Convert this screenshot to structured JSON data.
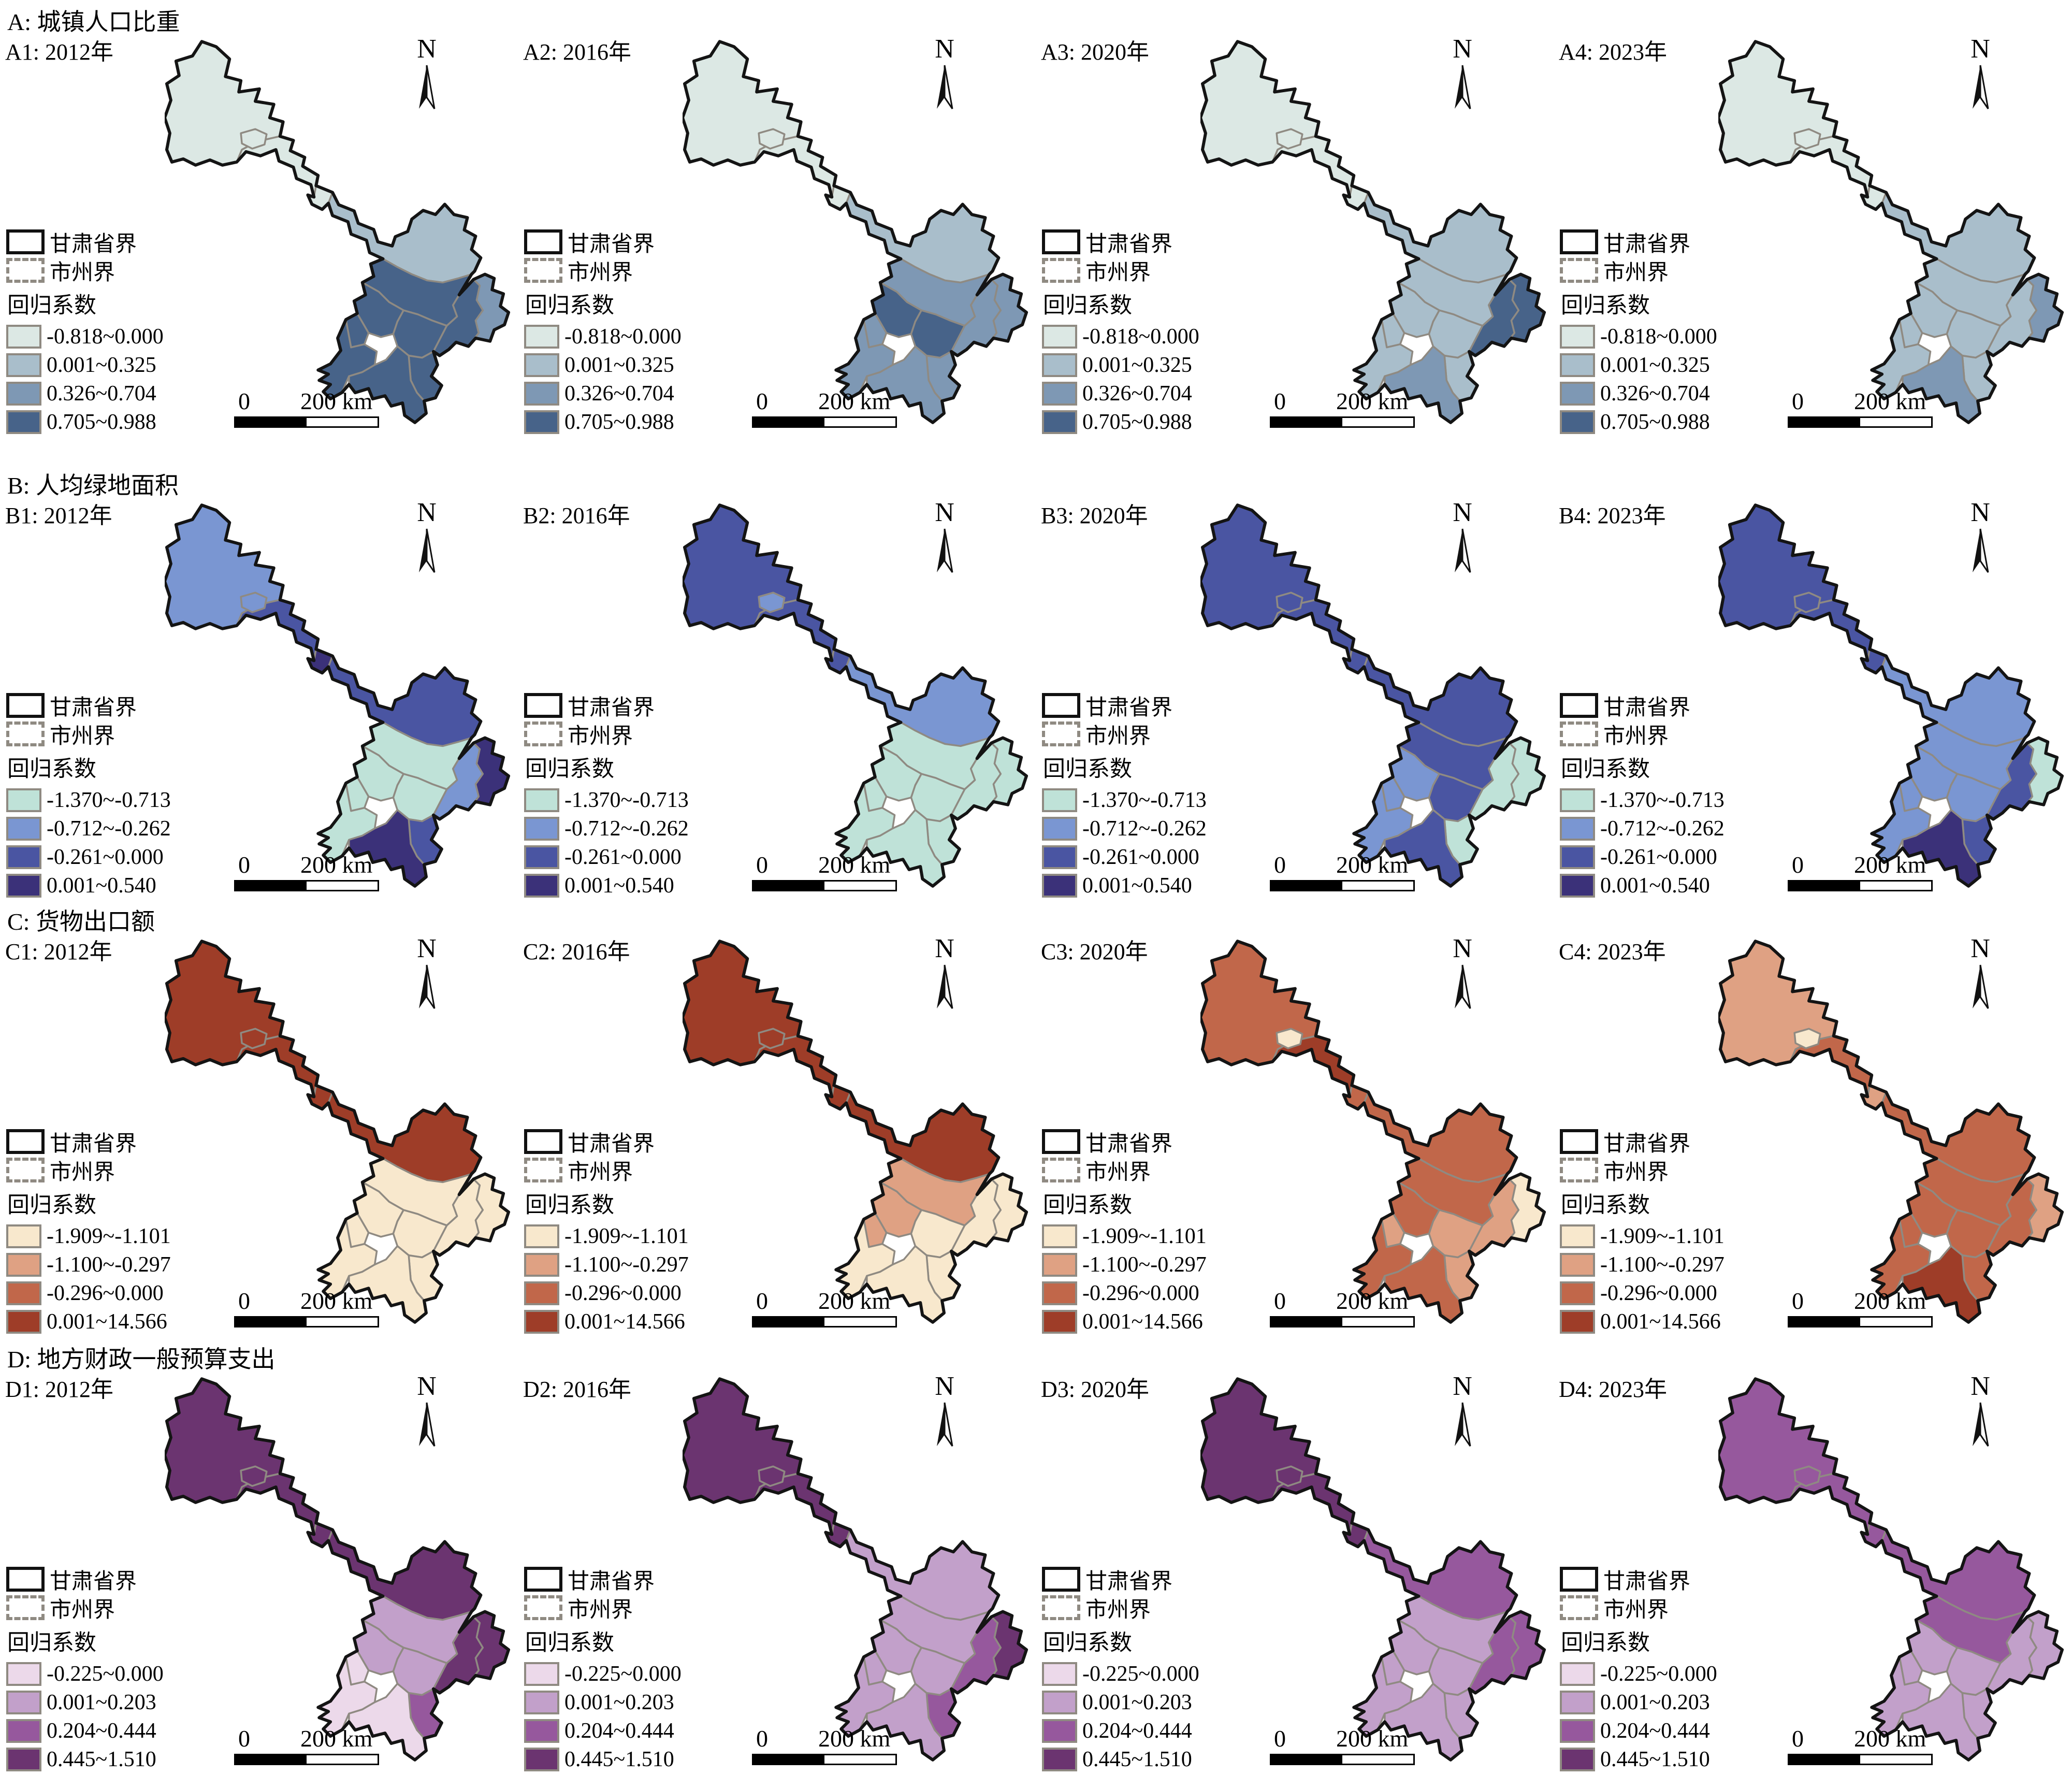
{
  "figure": {
    "north_label": "N",
    "legend": {
      "province_border_label": "甘肃省界",
      "city_border_label": "市州界",
      "coefficient_title": "回归系数"
    },
    "scalebar": {
      "zero": "0",
      "distance": "200 km"
    },
    "boundary_colors": {
      "province": "#141414",
      "prefecture": "#8f8a82"
    }
  },
  "chart_data": {
    "type": "choropleth-map-grid",
    "region": "Gansu Province, China",
    "years": [
      "2012年",
      "2016年",
      "2020年",
      "2023年"
    ],
    "rows": [
      {
        "id": "A",
        "title": "A: 城镇人口比重",
        "classes": [
          "-0.818~0.000",
          "0.001~0.325",
          "0.326~0.704",
          "0.705~0.988"
        ],
        "palette": [
          "#dce8e4",
          "#a9becb",
          "#7e98b4",
          "#476389"
        ],
        "panels": [
          {
            "title": "A1: 2012年",
            "region_classes": {
              "jiuquan": 1,
              "jiayuguan": 1,
              "zhangye": 1,
              "jinchang": 1,
              "wuwei": 2,
              "baiyin": 4,
              "lanzhou": 4,
              "linxia": 4,
              "dingxi": 4,
              "gannan": 4,
              "tianshui": 4,
              "longnan": 4,
              "pingliang": 4,
              "qingyang": 3
            }
          },
          {
            "title": "A2: 2016年",
            "region_classes": {
              "jiuquan": 1,
              "jiayuguan": 1,
              "zhangye": 1,
              "jinchang": 1,
              "wuwei": 2,
              "baiyin": 3,
              "lanzhou": 4,
              "linxia": 3,
              "dingxi": 4,
              "gannan": 3,
              "tianshui": 3,
              "longnan": 3,
              "pingliang": 3,
              "qingyang": 3
            }
          },
          {
            "title": "A3: 2020年",
            "region_classes": {
              "jiuquan": 1,
              "jiayuguan": 1,
              "zhangye": 1,
              "jinchang": 1,
              "wuwei": 2,
              "baiyin": 2,
              "lanzhou": 2,
              "linxia": 2,
              "dingxi": 2,
              "gannan": 2,
              "tianshui": 2,
              "longnan": 3,
              "pingliang": 4,
              "qingyang": 4
            }
          },
          {
            "title": "A4: 2023年",
            "region_classes": {
              "jiuquan": 1,
              "jiayuguan": 1,
              "zhangye": 1,
              "jinchang": 1,
              "wuwei": 2,
              "baiyin": 2,
              "lanzhou": 2,
              "linxia": 2,
              "dingxi": 2,
              "gannan": 2,
              "tianshui": 2,
              "longnan": 3,
              "pingliang": 2,
              "qingyang": 3
            }
          }
        ]
      },
      {
        "id": "B",
        "title": "B: 人均绿地面积",
        "classes": [
          "-1.370~-0.713",
          "-0.712~-0.262",
          "-0.261~0.000",
          "0.001~0.540"
        ],
        "palette": [
          "#bfe2d8",
          "#7a96d2",
          "#4a55a2",
          "#3b3179"
        ],
        "panels": [
          {
            "title": "B1: 2012年",
            "region_classes": {
              "jiuquan": 2,
              "jiayuguan": 2,
              "zhangye": 3,
              "jinchang": 4,
              "wuwei": 3,
              "baiyin": 1,
              "lanzhou": 1,
              "linxia": 1,
              "dingxi": 1,
              "gannan": 1,
              "tianshui": 3,
              "longnan": 4,
              "pingliang": 2,
              "qingyang": 4
            }
          },
          {
            "title": "B2: 2016年",
            "region_classes": {
              "jiuquan": 3,
              "jiayuguan": 2,
              "zhangye": 3,
              "jinchang": 3,
              "wuwei": 2,
              "baiyin": 1,
              "lanzhou": 1,
              "linxia": 1,
              "dingxi": 1,
              "gannan": 1,
              "tianshui": 1,
              "longnan": 1,
              "pingliang": 1,
              "qingyang": 1
            }
          },
          {
            "title": "B3: 2020年",
            "region_classes": {
              "jiuquan": 3,
              "jiayuguan": 3,
              "zhangye": 3,
              "jinchang": 3,
              "wuwei": 3,
              "baiyin": 3,
              "lanzhou": 2,
              "linxia": 2,
              "dingxi": 3,
              "gannan": 2,
              "tianshui": 1,
              "longnan": 3,
              "pingliang": 1,
              "qingyang": 1
            }
          },
          {
            "title": "B4: 2023年",
            "region_classes": {
              "jiuquan": 3,
              "jiayuguan": 3,
              "zhangye": 3,
              "jinchang": 3,
              "wuwei": 2,
              "baiyin": 2,
              "lanzhou": 2,
              "linxia": 2,
              "dingxi": 2,
              "gannan": 2,
              "tianshui": 3,
              "longnan": 4,
              "pingliang": 3,
              "qingyang": 1
            }
          }
        ]
      },
      {
        "id": "C",
        "title": "C: 货物出口额",
        "classes": [
          "-1.909~-1.101",
          "-1.100~-0.297",
          "-0.296~0.000",
          "0.001~14.566"
        ],
        "palette": [
          "#f8e8cd",
          "#dfa183",
          "#c1674a",
          "#9e3d28"
        ],
        "panels": [
          {
            "title": "C1: 2012年",
            "region_classes": {
              "jiuquan": 4,
              "jiayuguan": 4,
              "zhangye": 4,
              "jinchang": 4,
              "wuwei": 4,
              "baiyin": 1,
              "lanzhou": 1,
              "linxia": 1,
              "dingxi": 1,
              "gannan": 1,
              "tianshui": 1,
              "longnan": 1,
              "pingliang": 1,
              "qingyang": 1
            }
          },
          {
            "title": "C2: 2016年",
            "region_classes": {
              "jiuquan": 4,
              "jiayuguan": 4,
              "zhangye": 4,
              "jinchang": 4,
              "wuwei": 4,
              "baiyin": 2,
              "lanzhou": 2,
              "linxia": 2,
              "dingxi": 1,
              "gannan": 1,
              "tianshui": 1,
              "longnan": 1,
              "pingliang": 1,
              "qingyang": 1
            }
          },
          {
            "title": "C3: 2020年",
            "region_classes": {
              "jiuquan": 3,
              "jiayuguan": 1,
              "zhangye": 4,
              "jinchang": 3,
              "wuwei": 3,
              "baiyin": 3,
              "lanzhou": 3,
              "linxia": 2,
              "dingxi": 2,
              "gannan": 3,
              "tianshui": 2,
              "longnan": 3,
              "pingliang": 2,
              "qingyang": 1
            }
          },
          {
            "title": "C4: 2023年",
            "region_classes": {
              "jiuquan": 2,
              "jiayuguan": 1,
              "zhangye": 3,
              "jinchang": 2,
              "wuwei": 3,
              "baiyin": 3,
              "lanzhou": 3,
              "linxia": 3,
              "dingxi": 3,
              "gannan": 3,
              "tianshui": 3,
              "longnan": 4,
              "pingliang": 3,
              "qingyang": 2
            }
          }
        ]
      },
      {
        "id": "D",
        "title": "D: 地方财政一般预算支出",
        "classes": [
          "-0.225~0.000",
          "0.001~0.203",
          "0.204~0.444",
          "0.445~1.510"
        ],
        "palette": [
          "#ecd9ea",
          "#c2a0ca",
          "#96589d",
          "#6b3470"
        ],
        "panels": [
          {
            "title": "D1: 2012年",
            "region_classes": {
              "jiuquan": 4,
              "jiayuguan": 4,
              "zhangye": 4,
              "jinchang": 4,
              "wuwei": 4,
              "baiyin": 2,
              "lanzhou": 2,
              "linxia": 1,
              "dingxi": 2,
              "gannan": 1,
              "tianshui": 3,
              "longnan": 1,
              "pingliang": 4,
              "qingyang": 4
            }
          },
          {
            "title": "D2: 2016年",
            "region_classes": {
              "jiuquan": 4,
              "jiayuguan": 4,
              "zhangye": 4,
              "jinchang": 4,
              "wuwei": 2,
              "baiyin": 2,
              "lanzhou": 2,
              "linxia": 2,
              "dingxi": 2,
              "gannan": 2,
              "tianshui": 3,
              "longnan": 2,
              "pingliang": 3,
              "qingyang": 4
            }
          },
          {
            "title": "D3: 2020年",
            "region_classes": {
              "jiuquan": 4,
              "jiayuguan": 4,
              "zhangye": 4,
              "jinchang": 4,
              "wuwei": 3,
              "baiyin": 2,
              "lanzhou": 2,
              "linxia": 2,
              "dingxi": 2,
              "gannan": 2,
              "tianshui": 2,
              "longnan": 2,
              "pingliang": 3,
              "qingyang": 3
            }
          },
          {
            "title": "D4: 2023年",
            "region_classes": {
              "jiuquan": 3,
              "jiayuguan": 3,
              "zhangye": 3,
              "jinchang": 3,
              "wuwei": 3,
              "baiyin": 3,
              "lanzhou": 2,
              "linxia": 2,
              "dingxi": 2,
              "gannan": 2,
              "tianshui": 2,
              "longnan": 2,
              "pingliang": 2,
              "qingyang": 2
            }
          }
        ]
      }
    ]
  }
}
